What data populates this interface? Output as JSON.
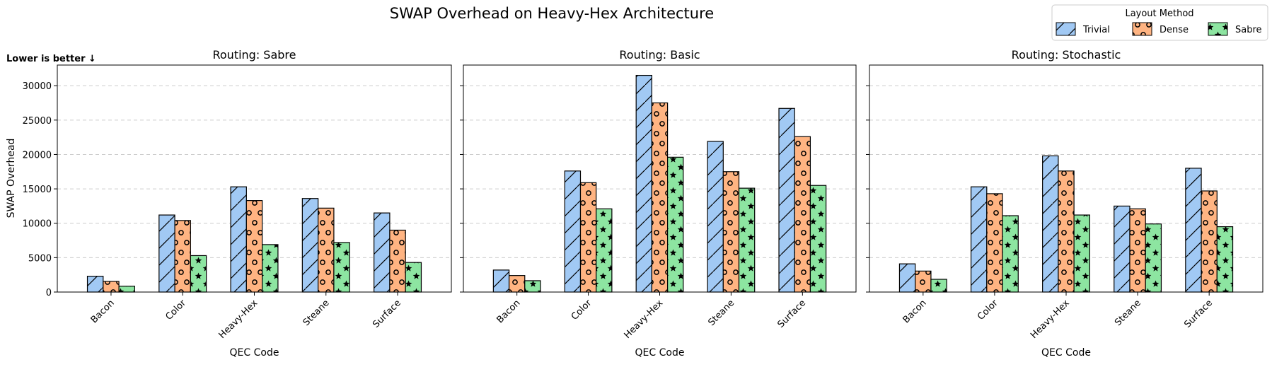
{
  "chart_data": {
    "type": "bar",
    "title": "SWAP Overhead on Heavy-Hex Architecture",
    "annotation": "Lower is better ↓",
    "ylabel": "SWAP Overhead",
    "xlabel": "QEC Code",
    "ylim": [
      0,
      33000
    ],
    "yticks": [
      0,
      5000,
      10000,
      15000,
      20000,
      25000,
      30000
    ],
    "grid": "y-dashed",
    "categories": [
      "Bacon",
      "Color",
      "Heavy-Hex",
      "Steane",
      "Surface"
    ],
    "legend": {
      "title": "Layout Method",
      "placement": "top-right",
      "entries": [
        "Trivial",
        "Dense",
        "Sabre"
      ]
    },
    "colors": {
      "Trivial": "#a1c9f4",
      "Dense": "#ffb482",
      "Sabre": "#8de5a1"
    },
    "panels": [
      {
        "title": "Routing: Sabre",
        "series": [
          {
            "name": "Trivial",
            "values": [
              2300,
              11200,
              15300,
              13600,
              11500
            ]
          },
          {
            "name": "Dense",
            "values": [
              1550,
              10400,
              13300,
              12200,
              9000
            ]
          },
          {
            "name": "Sabre",
            "values": [
              850,
              5300,
              6900,
              7200,
              4300
            ]
          }
        ]
      },
      {
        "title": "Routing: Basic",
        "series": [
          {
            "name": "Trivial",
            "values": [
              3200,
              17600,
              31500,
              21900,
              26700
            ]
          },
          {
            "name": "Dense",
            "values": [
              2400,
              15900,
              27500,
              17500,
              22600
            ]
          },
          {
            "name": "Sabre",
            "values": [
              1650,
              12100,
              19600,
              15100,
              15500
            ]
          }
        ]
      },
      {
        "title": "Routing: Stochastic",
        "series": [
          {
            "name": "Trivial",
            "values": [
              4100,
              15300,
              19800,
              12500,
              18000
            ]
          },
          {
            "name": "Dense",
            "values": [
              3050,
              14300,
              17600,
              12100,
              14700
            ]
          },
          {
            "name": "Sabre",
            "values": [
              1850,
              11100,
              11200,
              9900,
              9500
            ]
          }
        ]
      }
    ]
  }
}
